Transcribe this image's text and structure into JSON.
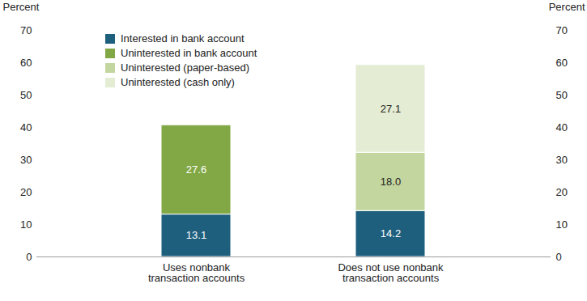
{
  "chart_data": {
    "type": "bar",
    "stacked": true,
    "data_labels": true,
    "legend": "top-left",
    "grid": false,
    "y_label": "Percent",
    "categories": [
      "Uses nonbank\ntransaction accounts",
      "Does not use nonbank\ntransaction accounts"
    ],
    "series": [
      {
        "name": "Interested in bank account",
        "color": "#1f5f7e",
        "values": [
          13.1,
          14.2
        ]
      },
      {
        "name": "Uninterested in bank account",
        "color": "#82a846",
        "values": [
          27.6,
          null
        ]
      },
      {
        "name": "Uninterested (paper-based)",
        "color": "#c4d69f",
        "values": [
          null,
          18
        ],
        "value_labels": [
          null,
          "18.0"
        ]
      },
      {
        "name": "Uninterested (cash only)",
        "color": "#e4ecd3",
        "values": [
          null,
          27.1
        ]
      }
    ],
    "ylim": [
      0,
      70
    ],
    "yticks": [
      0,
      10,
      20,
      30,
      40,
      50,
      60,
      70
    ]
  }
}
